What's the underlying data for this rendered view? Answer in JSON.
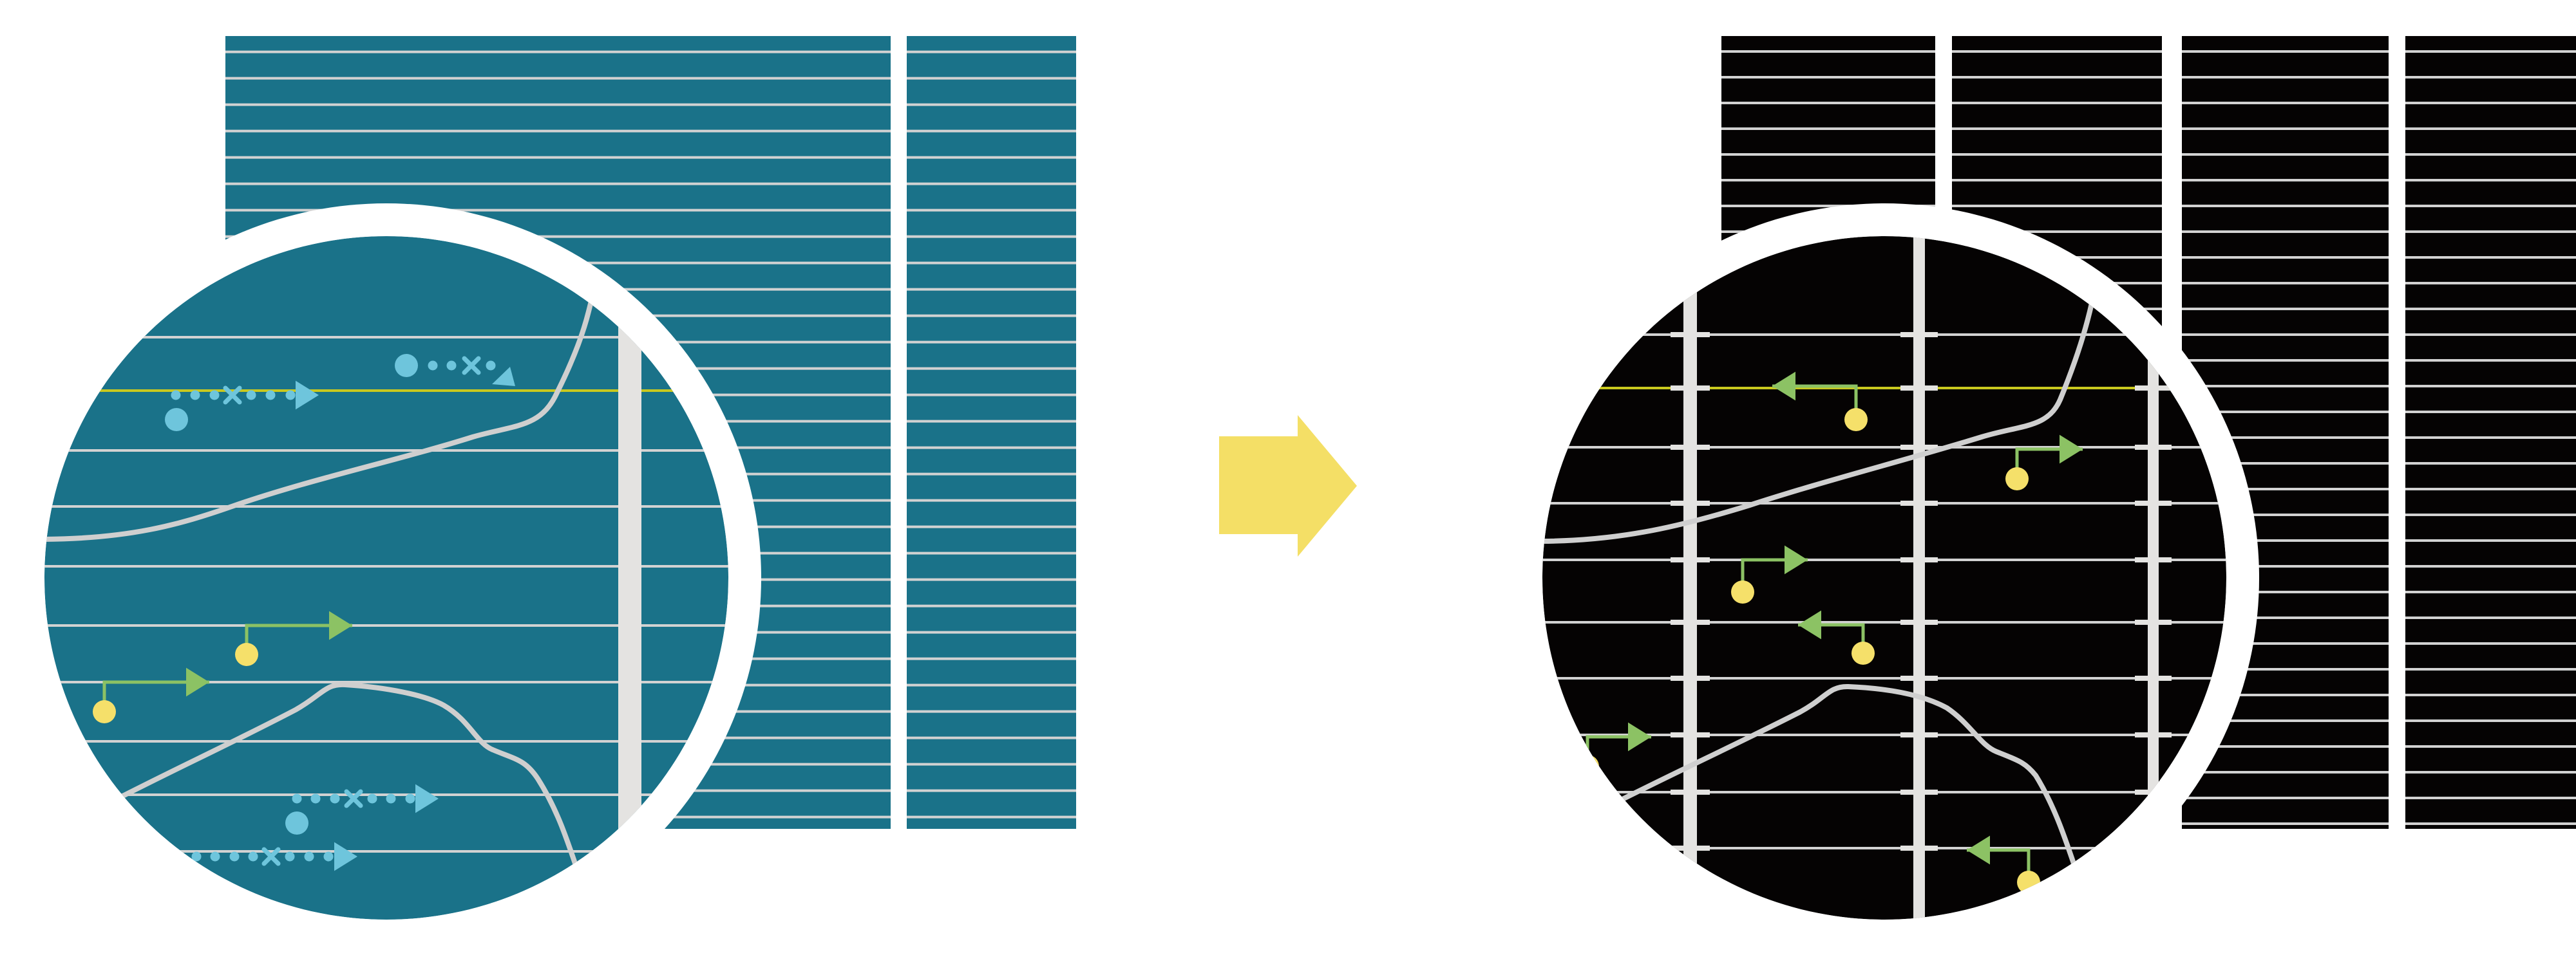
{
  "colors": {
    "background": "#ffffff",
    "before_panel": "#1a7289",
    "after_panel": "#050303",
    "grid_line": "#d2d2d2",
    "highlight_line": "#c9c81e",
    "vertical_bar": "#e4e3e1",
    "curve": "#cfcfcf",
    "dotted_arrow": "#6ec5dc",
    "green_arrow": "#8cc264",
    "node": "#f5e06a",
    "transition_arrow": "#f4df66"
  },
  "icons": {
    "transition": "arrow-right-icon",
    "magnifier": "magnifier-circle",
    "dotted_path": "dotted-arrow-icon",
    "node_arrow": "node-arrow-icon"
  }
}
